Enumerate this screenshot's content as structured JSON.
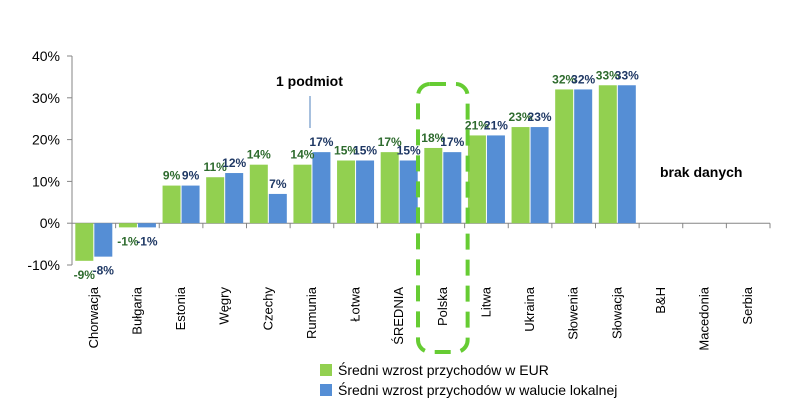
{
  "chart_data": {
    "type": "bar",
    "categories": [
      "Chorwacja",
      "Bułgaria",
      "Estonia",
      "Węgry",
      "Czechy",
      "Rumunia",
      "Łotwa",
      "ŚREDNIA",
      "Polska",
      "Litwa",
      "Ukraina",
      "Słowenia",
      "Słowacja",
      "B&H",
      "Macedonia",
      "Serbia"
    ],
    "series": [
      {
        "name": "Średni wzrost przychodów w EUR",
        "color": "#92D050",
        "label_color": "#2E6B2E",
        "values": [
          -9,
          -1,
          9,
          11,
          14,
          14,
          15,
          17,
          18,
          21,
          23,
          32,
          33,
          null,
          null,
          null
        ],
        "labels": [
          "-9%",
          "-1%",
          "9%",
          "11%",
          "14%",
          "14%",
          "15%",
          "17%",
          "18%",
          "21%",
          "23%",
          "32%",
          "33%",
          "",
          "",
          ""
        ]
      },
      {
        "name": "Średni wzrost przychodów w walucie lokalnej",
        "color": "#558ED5",
        "label_color": "#1F3864",
        "values": [
          -8,
          -1,
          9,
          12,
          7,
          17,
          15,
          15,
          17,
          21,
          23,
          32,
          33,
          null,
          null,
          null
        ],
        "labels": [
          "-8%",
          "-1%",
          "9%",
          "12%",
          "7%",
          "17%",
          "15%",
          "15%",
          "17%",
          "21%",
          "23%",
          "32%",
          "33%",
          "",
          "",
          ""
        ]
      }
    ],
    "ylim": [
      -10,
      40
    ],
    "yticks": [
      -10,
      0,
      10,
      20,
      30,
      40
    ],
    "ytick_labels": [
      "-10%",
      "0%",
      "10%",
      "20%",
      "30%",
      "40%"
    ],
    "legend_position": "bottom-center",
    "highlight_category": "Polska",
    "highlight_color": "#66CC33",
    "annotations": {
      "one_entity": "1 podmiot",
      "no_data": "brak danych"
    }
  }
}
